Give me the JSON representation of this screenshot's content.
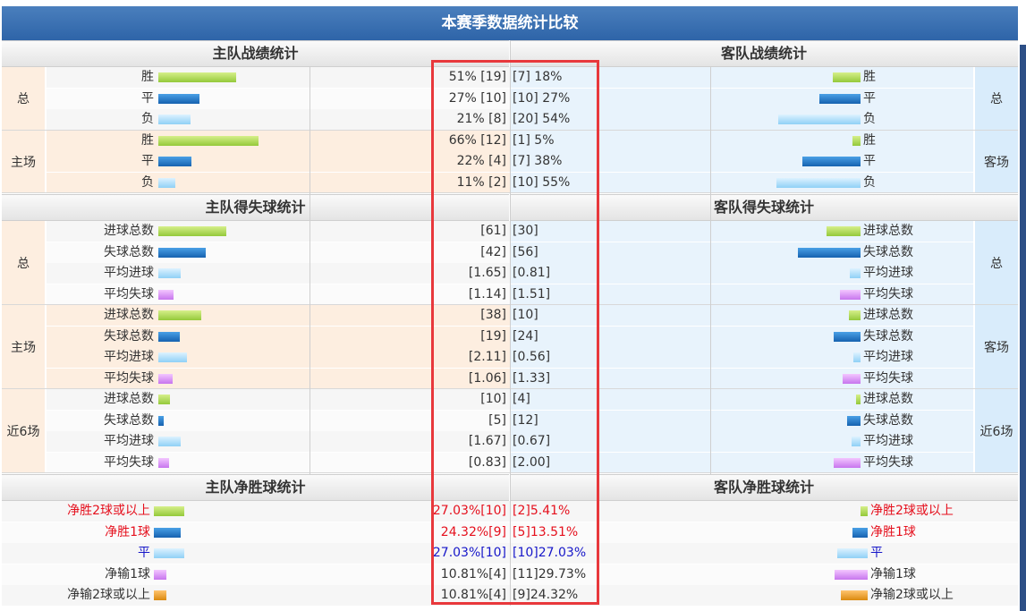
{
  "title": "本赛季数据统计比较",
  "record": {
    "home_header": "主队战绩统计",
    "away_header": "客队战绩统计",
    "groups": [
      {
        "home_label": "总",
        "away_label": "总",
        "rows": [
          {
            "label": "胜",
            "home": "51% [19]",
            "away": "[7] 18%",
            "home_pct": 51,
            "away_pct": 18,
            "color": "green"
          },
          {
            "label": "平",
            "home": "27% [10]",
            "away": "[10] 27%",
            "home_pct": 27,
            "away_pct": 27,
            "color": "blue"
          },
          {
            "label": "负",
            "home": "21% [8]",
            "away": "[20] 54%",
            "home_pct": 21,
            "away_pct": 54,
            "color": "sky"
          }
        ]
      },
      {
        "home_label": "主场",
        "away_label": "客场",
        "rows": [
          {
            "label": "胜",
            "home": "66% [12]",
            "away": "[1] 5%",
            "home_pct": 66,
            "away_pct": 5,
            "color": "green"
          },
          {
            "label": "平",
            "home": "22% [4]",
            "away": "[7] 38%",
            "home_pct": 22,
            "away_pct": 38,
            "color": "blue"
          },
          {
            "label": "负",
            "home": "11% [2]",
            "away": "[10] 55%",
            "home_pct": 11,
            "away_pct": 55,
            "color": "sky"
          }
        ]
      }
    ]
  },
  "goals": {
    "home_header": "主队得失球统计",
    "away_header": "客队得失球统计",
    "groups": [
      {
        "home_label": "总",
        "away_label": "总",
        "rows": [
          {
            "label": "进球总数",
            "home": "[61]",
            "away": "[30]",
            "home_val": 61,
            "away_val": 30,
            "color": "green"
          },
          {
            "label": "失球总数",
            "home": "[42]",
            "away": "[56]",
            "home_val": 42,
            "away_val": 56,
            "color": "blue"
          },
          {
            "label": "平均进球",
            "home": "[1.65]",
            "away": "[0.81]",
            "home_val": 1.65,
            "away_val": 0.81,
            "color": "sky"
          },
          {
            "label": "平均失球",
            "home": "[1.14]",
            "away": "[1.51]",
            "home_val": 1.14,
            "away_val": 1.51,
            "color": "purple"
          }
        ]
      },
      {
        "home_label": "主场",
        "away_label": "客场",
        "rows": [
          {
            "label": "进球总数",
            "home": "[38]",
            "away": "[10]",
            "home_val": 38,
            "away_val": 10,
            "color": "green"
          },
          {
            "label": "失球总数",
            "home": "[19]",
            "away": "[24]",
            "home_val": 19,
            "away_val": 24,
            "color": "blue"
          },
          {
            "label": "平均进球",
            "home": "[2.11]",
            "away": "[0.56]",
            "home_val": 2.11,
            "away_val": 0.56,
            "color": "sky"
          },
          {
            "label": "平均失球",
            "home": "[1.06]",
            "away": "[1.33]",
            "home_val": 1.06,
            "away_val": 1.33,
            "color": "purple"
          }
        ]
      },
      {
        "home_label": "近6场",
        "away_label": "近6场",
        "rows": [
          {
            "label": "进球总数",
            "home": "[10]",
            "away": "[4]",
            "home_val": 10,
            "away_val": 4,
            "color": "green"
          },
          {
            "label": "失球总数",
            "home": "[5]",
            "away": "[12]",
            "home_val": 5,
            "away_val": 12,
            "color": "blue"
          },
          {
            "label": "平均进球",
            "home": "[1.67]",
            "away": "[0.67]",
            "home_val": 1.67,
            "away_val": 0.67,
            "color": "sky"
          },
          {
            "label": "平均失球",
            "home": "[0.83]",
            "away": "[2.00]",
            "home_val": 0.83,
            "away_val": 2.0,
            "color": "purple"
          }
        ]
      }
    ]
  },
  "margin": {
    "home_header": "主队净胜球统计",
    "away_header": "客队净胜球统计",
    "rows": [
      {
        "label": "净胜2球或以上",
        "home": "27.03%[10]",
        "away": "[2]5.41%",
        "home_pct": 27.03,
        "away_pct": 5.41,
        "color": "green",
        "text": "red"
      },
      {
        "label": "净胜1球",
        "home": "24.32%[9]",
        "away": "[5]13.51%",
        "home_pct": 24.32,
        "away_pct": 13.51,
        "color": "blue",
        "text": "red"
      },
      {
        "label": "平",
        "home": "27.03%[10]",
        "away": "[10]27.03%",
        "home_pct": 27.03,
        "away_pct": 27.03,
        "color": "sky",
        "text": "navy"
      },
      {
        "label": "净输1球",
        "home": "10.81%[4]",
        "away": "[11]29.73%",
        "home_pct": 10.81,
        "away_pct": 29.73,
        "color": "purple",
        "text": "dark"
      },
      {
        "label": "净输2球或以上",
        "home": "10.81%[4]",
        "away": "[9]24.32%",
        "home_pct": 10.81,
        "away_pct": 24.32,
        "color": "orange",
        "text": "dark"
      }
    ]
  }
}
